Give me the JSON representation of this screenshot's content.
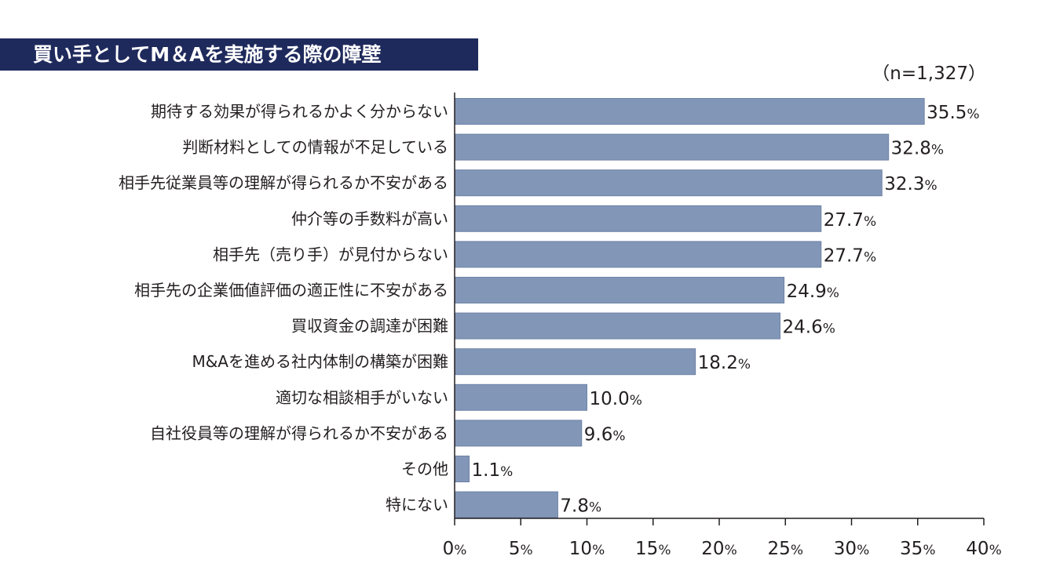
{
  "chart_data": {
    "type": "bar",
    "orientation": "horizontal",
    "title": "買い手としてM＆Aを実施する際の障壁",
    "sample_note": "（n=1,327）",
    "unit": "%",
    "categories": [
      "期待する効果が得られるかよく分からない",
      "判断材料としての情報が不足している",
      "相手先従業員等の理解が得られるか不安がある",
      "仲介等の手数料が高い",
      "相手先（売り手）が見付からない",
      "相手先の企業価値評価の適正性に不安がある",
      "買収資金の調達が困難",
      "M&Aを進める社内体制の構築が困難",
      "適切な相談相手がいない",
      "自社役員等の理解が得られるか不安がある",
      "その他",
      "特にない"
    ],
    "values": [
      35.5,
      32.8,
      32.3,
      27.7,
      27.7,
      24.9,
      24.6,
      18.2,
      10.0,
      9.6,
      1.1,
      7.8
    ],
    "value_labels": [
      "35.5",
      "32.8",
      "32.3",
      "27.7",
      "27.7",
      "24.9",
      "24.6",
      "18.2",
      "10.0",
      "9.6",
      "1.1",
      "7.8"
    ],
    "xlim": [
      0,
      40
    ],
    "xticks": [
      "0",
      "5",
      "10",
      "15",
      "20",
      "25",
      "30",
      "35",
      "40"
    ],
    "grid": false,
    "legend": "none",
    "colors": {
      "bar": "#8296b7",
      "bar_border": "#6f84a8",
      "title_bg": "#1f2a5c",
      "title_text": "#ffffff",
      "axis": "#231f20"
    }
  }
}
